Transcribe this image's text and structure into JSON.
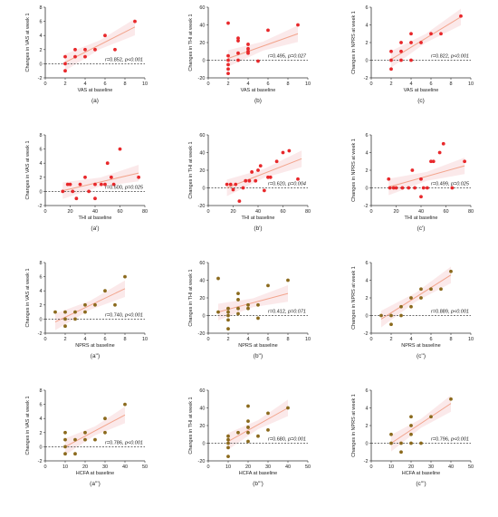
{
  "figure": {
    "colors": {
      "red_points": "#e8282b",
      "olive_points": "#8b6a1d",
      "trend_line": "#f2a48c",
      "band": "#fbe9ea",
      "axis": "#333333",
      "zero_line": "#444444"
    }
  },
  "chart_data": [
    {
      "type": "scatter",
      "panel_label": "(a)",
      "color_key": "red",
      "xlabel": "VAS at baseline",
      "ylabel": "Changes in VAS at week 1",
      "xlim": [
        0,
        10
      ],
      "ylim": [
        -2,
        8
      ],
      "xticks": [
        0,
        2,
        4,
        6,
        8,
        10
      ],
      "yticks": [
        -2,
        0,
        2,
        4,
        6,
        8
      ],
      "xtick_labels": [
        "0",
        "2",
        "4",
        "6",
        "8",
        "10"
      ],
      "ytick_labels": [
        "-2",
        "0",
        "2",
        "4",
        "6",
        "8"
      ],
      "points": [
        [
          2,
          -1
        ],
        [
          2,
          0
        ],
        [
          2,
          1
        ],
        [
          3,
          2
        ],
        [
          3,
          1
        ],
        [
          4,
          2
        ],
        [
          4,
          1
        ],
        [
          5,
          2
        ],
        [
          6,
          4
        ],
        [
          7,
          2
        ],
        [
          9,
          6
        ]
      ],
      "trend": [
        [
          2,
          0.2
        ],
        [
          9,
          5.2
        ]
      ],
      "r_prefix": "r=0.852, ",
      "p_text": "p<0.001"
    },
    {
      "type": "scatter",
      "panel_label": "(b)",
      "color_key": "red",
      "xlabel": "VAS at baseline",
      "ylabel": "Changes in THI at week 1",
      "xlim": [
        0,
        10
      ],
      "ylim": [
        -20,
        60
      ],
      "xticks": [
        0,
        2,
        4,
        6,
        8,
        10
      ],
      "yticks": [
        -20,
        0,
        20,
        40,
        60
      ],
      "xtick_labels": [
        "0",
        "2",
        "4",
        "6",
        "8",
        "10"
      ],
      "ytick_labels": [
        "-20",
        "0",
        "20",
        "40",
        "60"
      ],
      "points": [
        [
          2,
          42
        ],
        [
          2,
          5
        ],
        [
          2,
          0
        ],
        [
          2,
          -5
        ],
        [
          2,
          -10
        ],
        [
          2,
          -15
        ],
        [
          3,
          25
        ],
        [
          3,
          22
        ],
        [
          3,
          8
        ],
        [
          3,
          0
        ],
        [
          4,
          18
        ],
        [
          4,
          13
        ],
        [
          4,
          8
        ],
        [
          4,
          10
        ],
        [
          5,
          -1
        ],
        [
          6,
          34
        ],
        [
          9,
          40
        ]
      ],
      "trend": [
        [
          2,
          2
        ],
        [
          9,
          30
        ]
      ],
      "r_prefix": "r=0.495, ",
      "p_text": "p=0.027"
    },
    {
      "type": "scatter",
      "panel_label": "(c)",
      "color_key": "red",
      "xlabel": "VAS at baseline",
      "ylabel": "Changes in NPRS at week 1",
      "xlim": [
        0,
        10
      ],
      "ylim": [
        -2,
        6
      ],
      "xticks": [
        0,
        2,
        4,
        6,
        8,
        10
      ],
      "yticks": [
        -2,
        0,
        2,
        4,
        6
      ],
      "xtick_labels": [
        "0",
        "2",
        "4",
        "6",
        "8",
        "10"
      ],
      "ytick_labels": [
        "-2",
        "0",
        "2",
        "4",
        "6"
      ],
      "points": [
        [
          2,
          1
        ],
        [
          2,
          0
        ],
        [
          2,
          -1
        ],
        [
          3,
          2
        ],
        [
          3,
          1
        ],
        [
          3,
          0
        ],
        [
          4,
          3
        ],
        [
          4,
          2
        ],
        [
          4,
          0
        ],
        [
          5,
          2
        ],
        [
          6,
          3
        ],
        [
          7,
          3
        ],
        [
          9,
          5
        ]
      ],
      "trend": [
        [
          2,
          0.1
        ],
        [
          9,
          4.9
        ]
      ],
      "r_prefix": "r=0.822, ",
      "p_text": "p<0.001"
    },
    {
      "type": "scatter",
      "panel_label": "(a')",
      "color_key": "red",
      "xlabel": "THI at baseline",
      "ylabel": "Changes in VAS at week 1",
      "xlim": [
        0,
        80
      ],
      "ylim": [
        -2,
        8
      ],
      "xticks": [
        0,
        20,
        40,
        60,
        80
      ],
      "yticks": [
        -2,
        0,
        2,
        4,
        6,
        8
      ],
      "xtick_labels": [
        "0",
        "20",
        "40",
        "60",
        "80"
      ],
      "ytick_labels": [
        "-2",
        "0",
        "2",
        "4",
        "6",
        "8"
      ],
      "points": [
        [
          14,
          0
        ],
        [
          18,
          1
        ],
        [
          20,
          1
        ],
        [
          22,
          0
        ],
        [
          25,
          -1
        ],
        [
          28,
          1
        ],
        [
          32,
          2
        ],
        [
          35,
          0
        ],
        [
          40,
          1
        ],
        [
          40,
          -1
        ],
        [
          45,
          1
        ],
        [
          48,
          1
        ],
        [
          50,
          4
        ],
        [
          53,
          2
        ],
        [
          55,
          1
        ],
        [
          60,
          6
        ],
        [
          75,
          2
        ]
      ],
      "trend": [
        [
          14,
          0.1
        ],
        [
          75,
          2.6
        ]
      ],
      "r_prefix": "r=0.500, ",
      "p_text": "p=0.025"
    },
    {
      "type": "scatter",
      "panel_label": "(b')",
      "color_key": "red",
      "xlabel": "THI at baseline",
      "ylabel": "Changes in THI at week 1",
      "xlim": [
        0,
        80
      ],
      "ylim": [
        -20,
        60
      ],
      "xticks": [
        0,
        20,
        40,
        60,
        80
      ],
      "yticks": [
        -20,
        0,
        20,
        40,
        60
      ],
      "xtick_labels": [
        "0",
        "20",
        "40",
        "60",
        "80"
      ],
      "ytick_labels": [
        "-20",
        "0",
        "20",
        "40",
        "60"
      ],
      "points": [
        [
          15,
          4
        ],
        [
          18,
          4
        ],
        [
          20,
          -2
        ],
        [
          22,
          4
        ],
        [
          25,
          -15
        ],
        [
          28,
          0
        ],
        [
          30,
          8
        ],
        [
          33,
          8
        ],
        [
          35,
          18
        ],
        [
          38,
          8
        ],
        [
          40,
          20
        ],
        [
          42,
          25
        ],
        [
          45,
          -3
        ],
        [
          48,
          12
        ],
        [
          50,
          12
        ],
        [
          55,
          30
        ],
        [
          60,
          40
        ],
        [
          65,
          42
        ],
        [
          72,
          10
        ]
      ],
      "trend": [
        [
          15,
          0
        ],
        [
          75,
          33
        ]
      ],
      "r_prefix": "r=0.620, ",
      "p_text": "p=0.004"
    },
    {
      "type": "scatter",
      "panel_label": "(c')",
      "color_key": "red",
      "xlabel": "THI at baseline",
      "ylabel": "Changes in NPRS at week 1",
      "xlim": [
        0,
        80
      ],
      "ylim": [
        -2,
        6
      ],
      "xticks": [
        0,
        20,
        40,
        60,
        80
      ],
      "yticks": [
        -2,
        0,
        2,
        4,
        6
      ],
      "xtick_labels": [
        "0",
        "20",
        "40",
        "60",
        "80"
      ],
      "ytick_labels": [
        "-2",
        "0",
        "2",
        "4",
        "6"
      ],
      "points": [
        [
          14,
          1
        ],
        [
          15,
          0
        ],
        [
          18,
          0
        ],
        [
          20,
          0
        ],
        [
          25,
          0
        ],
        [
          30,
          0
        ],
        [
          33,
          2
        ],
        [
          35,
          0
        ],
        [
          40,
          1
        ],
        [
          40,
          -1
        ],
        [
          42,
          0
        ],
        [
          45,
          0
        ],
        [
          48,
          3
        ],
        [
          50,
          3
        ],
        [
          55,
          4
        ],
        [
          58,
          5
        ],
        [
          65,
          0
        ],
        [
          75,
          3
        ]
      ],
      "trend": [
        [
          14,
          0.1
        ],
        [
          75,
          2.5
        ]
      ],
      "r_prefix": "r=0.499, ",
      "p_text": "p=0.025"
    },
    {
      "type": "scatter",
      "panel_label": "(a'')",
      "color_key": "olive",
      "xlabel": "NPRS at baseline",
      "ylabel": "Changes in VAS at week 1",
      "xlim": [
        0,
        10
      ],
      "ylim": [
        -2,
        8
      ],
      "xticks": [
        0,
        2,
        4,
        6,
        8,
        10
      ],
      "yticks": [
        -2,
        0,
        2,
        4,
        6,
        8
      ],
      "xtick_labels": [
        "0",
        "2",
        "4",
        "6",
        "8",
        "10"
      ],
      "ytick_labels": [
        "-2",
        "0",
        "2",
        "4",
        "6",
        "8"
      ],
      "points": [
        [
          1,
          1
        ],
        [
          2,
          0
        ],
        [
          2,
          -1
        ],
        [
          2,
          1
        ],
        [
          3,
          1
        ],
        [
          3,
          0
        ],
        [
          4,
          2
        ],
        [
          4,
          1
        ],
        [
          5,
          2
        ],
        [
          6,
          4
        ],
        [
          7,
          2
        ],
        [
          8,
          6
        ]
      ],
      "trend": [
        [
          1,
          -0.4
        ],
        [
          8,
          4.3
        ]
      ],
      "r_prefix": "r=0.740, ",
      "p_text": "p<0.001"
    },
    {
      "type": "scatter",
      "panel_label": "(b'')",
      "color_key": "olive",
      "xlabel": "NPRS at baseline",
      "ylabel": "Changes in THI at week 1",
      "xlim": [
        0,
        10
      ],
      "ylim": [
        -20,
        60
      ],
      "xticks": [
        0,
        2,
        4,
        6,
        8,
        10
      ],
      "yticks": [
        -20,
        0,
        20,
        40,
        60
      ],
      "xtick_labels": [
        "0",
        "2",
        "4",
        "6",
        "8",
        "10"
      ],
      "ytick_labels": [
        "-20",
        "0",
        "20",
        "40",
        "60"
      ],
      "points": [
        [
          1,
          42
        ],
        [
          1,
          4
        ],
        [
          2,
          8
        ],
        [
          2,
          4
        ],
        [
          2,
          0
        ],
        [
          2,
          -5
        ],
        [
          2,
          -15
        ],
        [
          3,
          25
        ],
        [
          3,
          18
        ],
        [
          3,
          8
        ],
        [
          3,
          2
        ],
        [
          4,
          12
        ],
        [
          4,
          8
        ],
        [
          5,
          -3
        ],
        [
          5,
          12
        ],
        [
          6,
          34
        ],
        [
          8,
          40
        ]
      ],
      "trend": [
        [
          1,
          4
        ],
        [
          8,
          25
        ]
      ],
      "r_prefix": "r=0.412, ",
      "p_text": "p=0.071"
    },
    {
      "type": "scatter",
      "panel_label": "(c'')",
      "color_key": "olive",
      "xlabel": "NPRS at baseline",
      "ylabel": "Changes in NPRS at week 1",
      "xlim": [
        0,
        10
      ],
      "ylim": [
        -2,
        6
      ],
      "xticks": [
        0,
        2,
        4,
        6,
        8,
        10
      ],
      "yticks": [
        -2,
        0,
        2,
        4,
        6
      ],
      "xtick_labels": [
        "0",
        "2",
        "4",
        "6",
        "8",
        "10"
      ],
      "ytick_labels": [
        "-2",
        "0",
        "2",
        "4",
        "6"
      ],
      "points": [
        [
          1,
          0
        ],
        [
          2,
          0
        ],
        [
          2,
          -1
        ],
        [
          3,
          1
        ],
        [
          3,
          0
        ],
        [
          4,
          2
        ],
        [
          4,
          1
        ],
        [
          5,
          3
        ],
        [
          5,
          2
        ],
        [
          6,
          3
        ],
        [
          7,
          3
        ],
        [
          8,
          5
        ]
      ],
      "trend": [
        [
          1,
          -0.4
        ],
        [
          8,
          4.6
        ]
      ],
      "r_prefix": "r=0.889, ",
      "p_text": "p<0.001"
    },
    {
      "type": "scatter",
      "panel_label": "(a''')",
      "color_key": "olive",
      "xlabel": "HCFA at baseline",
      "ylabel": "Changes in VAS at week 1",
      "xlim": [
        0,
        50
      ],
      "ylim": [
        -2,
        8
      ],
      "xticks": [
        0,
        10,
        20,
        30,
        40,
        50
      ],
      "yticks": [
        -2,
        0,
        2,
        4,
        6,
        8
      ],
      "xtick_labels": [
        "0",
        "10",
        "20",
        "30",
        "40",
        "50"
      ],
      "ytick_labels": [
        "-2",
        "0",
        "2",
        "4",
        "6",
        "8"
      ],
      "points": [
        [
          10,
          2
        ],
        [
          10,
          1
        ],
        [
          10,
          0
        ],
        [
          10,
          -1
        ],
        [
          15,
          -1
        ],
        [
          15,
          1
        ],
        [
          20,
          2
        ],
        [
          20,
          1
        ],
        [
          25,
          1
        ],
        [
          30,
          4
        ],
        [
          30,
          2
        ],
        [
          40,
          6
        ]
      ],
      "trend": [
        [
          10,
          0
        ],
        [
          40,
          4.5
        ]
      ],
      "r_prefix": "r=0.786, ",
      "p_text": "p<0.001"
    },
    {
      "type": "scatter",
      "panel_label": "(b''')",
      "color_key": "olive",
      "xlabel": "HCFA at baseline",
      "ylabel": "Changes in THI at week 1",
      "xlim": [
        0,
        50
      ],
      "ylim": [
        -20,
        60
      ],
      "xticks": [
        0,
        10,
        20,
        30,
        40,
        50
      ],
      "yticks": [
        -20,
        0,
        20,
        40,
        60
      ],
      "xtick_labels": [
        "0",
        "10",
        "20",
        "30",
        "40",
        "50"
      ],
      "ytick_labels": [
        "-20",
        "0",
        "20",
        "40",
        "60"
      ],
      "points": [
        [
          10,
          8
        ],
        [
          10,
          4
        ],
        [
          10,
          0
        ],
        [
          10,
          -5
        ],
        [
          10,
          -15
        ],
        [
          15,
          12
        ],
        [
          20,
          42
        ],
        [
          20,
          25
        ],
        [
          20,
          18
        ],
        [
          20,
          12
        ],
        [
          20,
          2
        ],
        [
          25,
          8
        ],
        [
          30,
          34
        ],
        [
          30,
          15
        ],
        [
          40,
          40
        ]
      ],
      "trend": [
        [
          10,
          2
        ],
        [
          40,
          40
        ]
      ],
      "r_prefix": "r=0.680, ",
      "p_text": "p=0.001"
    },
    {
      "type": "scatter",
      "panel_label": "(c''')",
      "color_key": "olive",
      "xlabel": "HCFA at baseline",
      "ylabel": "Changes in NPRS at week 1",
      "xlim": [
        0,
        50
      ],
      "ylim": [
        -2,
        6
      ],
      "xticks": [
        0,
        10,
        20,
        30,
        40,
        50
      ],
      "yticks": [
        -2,
        0,
        2,
        4,
        6
      ],
      "xtick_labels": [
        "0",
        "10",
        "20",
        "30",
        "40",
        "50"
      ],
      "ytick_labels": [
        "-2",
        "0",
        "2",
        "4",
        "6"
      ],
      "points": [
        [
          10,
          1
        ],
        [
          10,
          0
        ],
        [
          15,
          -1
        ],
        [
          15,
          0
        ],
        [
          20,
          3
        ],
        [
          20,
          2
        ],
        [
          20,
          1
        ],
        [
          20,
          0
        ],
        [
          25,
          0
        ],
        [
          30,
          3
        ],
        [
          40,
          5
        ]
      ],
      "trend": [
        [
          10,
          0
        ],
        [
          40,
          4.5
        ]
      ],
      "r_prefix": "r=0.796, ",
      "p_text": "p<0.001"
    }
  ]
}
